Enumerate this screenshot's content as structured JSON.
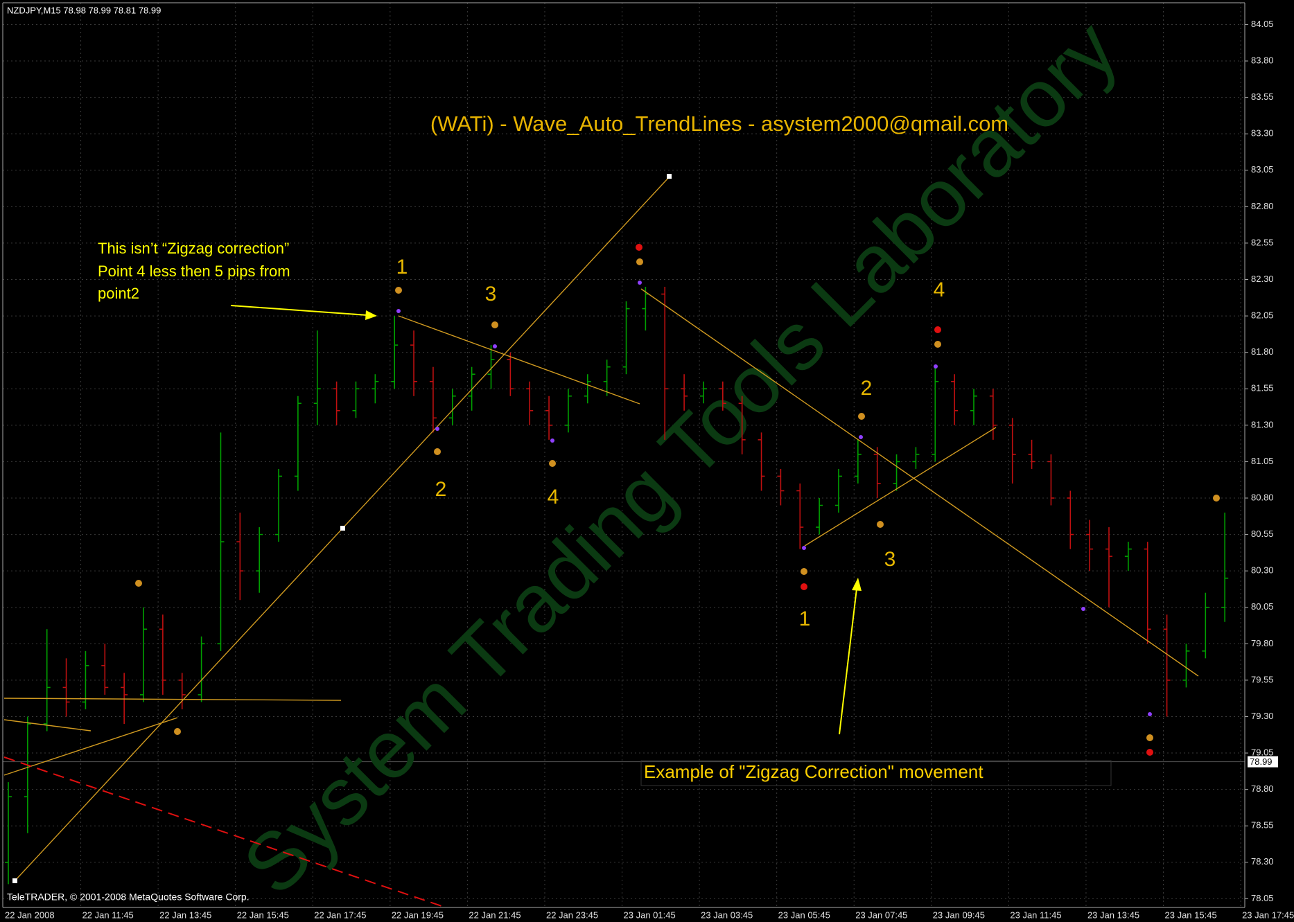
{
  "chart_data": {
    "type": "ohlc",
    "header": "NZDJPY,M15  78.98 78.99 78.81 78.99",
    "title": "(WATi) - Wave_Auto_TrendLines - asystem2000@qmail.com",
    "note_lines": [
      "This isn’t “Zigzag correction”",
      "Point 4 less then 5 pips from",
      "point2"
    ],
    "example_note": "Example of \"Zigzag Correction\" movement",
    "wave_labels": [
      "1",
      "3",
      "2",
      "4",
      "4",
      "2",
      "3",
      "1"
    ],
    "footer": "TeleTRADER, © 2001-2008 MetaQuotes Software Corp.",
    "watermark": "System Trading Tools Laboratory",
    "x_labels": [
      "22 Jan 2008",
      "22 Jan 11:45",
      "22 Jan 13:45",
      "22 Jan 15:45",
      "22 Jan 17:45",
      "22 Jan 19:45",
      "22 Jan 21:45",
      "22 Jan 23:45",
      "23 Jan 01:45",
      "23 Jan 03:45",
      "23 Jan 05:45",
      "23 Jan 07:45",
      "23 Jan 09:45",
      "23 Jan 11:45",
      "23 Jan 13:45",
      "23 Jan 15:45",
      "23 Jan 17:45"
    ],
    "open": [
      78.3,
      78.75,
      79.25,
      79.5,
      79.4,
      79.65,
      79.5,
      79.45,
      79.9,
      79.55,
      79.45,
      79.8,
      80.5,
      80.3,
      80.55,
      80.95,
      81.45,
      81.55,
      81.4,
      81.55,
      81.6,
      81.85,
      81.6,
      81.35,
      81.5,
      81.65,
      81.75,
      81.55,
      81.4,
      81.3,
      81.5,
      81.6,
      81.7,
      82.1,
      82.2,
      81.55,
      81.5,
      81.55,
      81.45,
      81.2,
      80.95,
      80.85,
      80.6,
      80.75,
      80.95,
      81.1,
      80.9,
      81.05,
      81.1,
      81.6,
      81.4,
      81.5,
      81.3,
      81.1,
      81.05,
      80.8,
      80.55,
      80.45,
      80.4,
      80.45,
      79.9,
      79.55,
      79.75,
      80.05
    ],
    "high": [
      78.85,
      79.3,
      79.9,
      79.7,
      79.75,
      79.8,
      79.6,
      80.05,
      80.0,
      79.6,
      79.85,
      81.25,
      80.7,
      80.6,
      81.0,
      81.5,
      81.95,
      81.6,
      81.6,
      81.65,
      82.05,
      81.95,
      81.7,
      81.55,
      81.7,
      81.85,
      81.8,
      81.6,
      81.5,
      81.55,
      81.65,
      81.75,
      82.15,
      82.25,
      82.25,
      81.65,
      81.6,
      81.6,
      81.5,
      81.25,
      81.0,
      80.9,
      80.8,
      81.0,
      81.2,
      81.15,
      81.1,
      81.15,
      81.7,
      81.65,
      81.55,
      81.55,
      81.35,
      81.2,
      81.1,
      80.85,
      80.65,
      80.6,
      80.5,
      80.5,
      80.0,
      79.8,
      80.15,
      80.7
    ],
    "low": [
      78.15,
      78.5,
      79.2,
      79.3,
      79.35,
      79.45,
      79.25,
      79.4,
      79.45,
      79.35,
      79.4,
      79.75,
      80.1,
      80.15,
      80.5,
      80.85,
      81.3,
      81.3,
      81.35,
      81.45,
      81.55,
      81.5,
      81.25,
      81.3,
      81.4,
      81.55,
      81.5,
      81.3,
      81.2,
      81.25,
      81.45,
      81.5,
      81.65,
      81.95,
      81.2,
      81.4,
      81.45,
      81.4,
      81.1,
      80.85,
      80.75,
      80.45,
      80.55,
      80.7,
      80.9,
      80.8,
      80.85,
      81.0,
      81.05,
      81.3,
      81.3,
      81.2,
      80.9,
      81.0,
      80.75,
      80.45,
      80.3,
      80.05,
      80.3,
      79.8,
      79.3,
      79.5,
      79.7,
      79.95
    ],
    "close": [
      78.75,
      79.25,
      79.5,
      79.4,
      79.65,
      79.5,
      79.45,
      79.9,
      79.55,
      79.45,
      79.8,
      80.5,
      80.3,
      80.55,
      80.95,
      81.45,
      81.55,
      81.4,
      81.55,
      81.6,
      81.85,
      81.6,
      81.35,
      81.5,
      81.65,
      81.75,
      81.55,
      81.4,
      81.3,
      81.5,
      81.6,
      81.7,
      82.1,
      82.2,
      81.55,
      81.5,
      81.55,
      81.45,
      81.2,
      80.95,
      80.85,
      80.6,
      80.75,
      80.95,
      81.1,
      80.9,
      81.05,
      81.1,
      81.6,
      81.4,
      81.5,
      81.3,
      81.1,
      81.05,
      80.8,
      80.55,
      80.45,
      80.4,
      80.45,
      79.9,
      79.55,
      79.75,
      80.05,
      80.25
    ],
    "up_color": "#00a000",
    "down_color": "#c01010",
    "last_price": 78.99,
    "ylim": [
      77.99,
      84.19
    ],
    "yticks": [
      78.05,
      {
        "value": 78.3,
        "label": "78.30"
      },
      78.55,
      {
        "value": 78.8,
        "label": "78.80"
      },
      79.05,
      {
        "value": 79.3,
        "label": "79.30"
      },
      79.55,
      {
        "value": 79.8,
        "label": "79.80"
      },
      80.05,
      {
        "value": 80.3,
        "label": "80.30"
      },
      80.55,
      {
        "value": 80.8,
        "label": "80.80"
      },
      81.05,
      {
        "value": 81.3,
        "label": "81.30"
      },
      81.55,
      {
        "value": 81.8,
        "label": "81.80"
      },
      82.05,
      {
        "value": 82.3,
        "label": "82.30"
      },
      82.55,
      {
        "value": 82.8,
        "label": "82.80"
      },
      83.05,
      {
        "value": 83.3,
        "label": "83.30"
      },
      83.55,
      {
        "value": 83.8,
        "label": "83.80"
      },
      84.05
    ],
    "grid": true
  }
}
